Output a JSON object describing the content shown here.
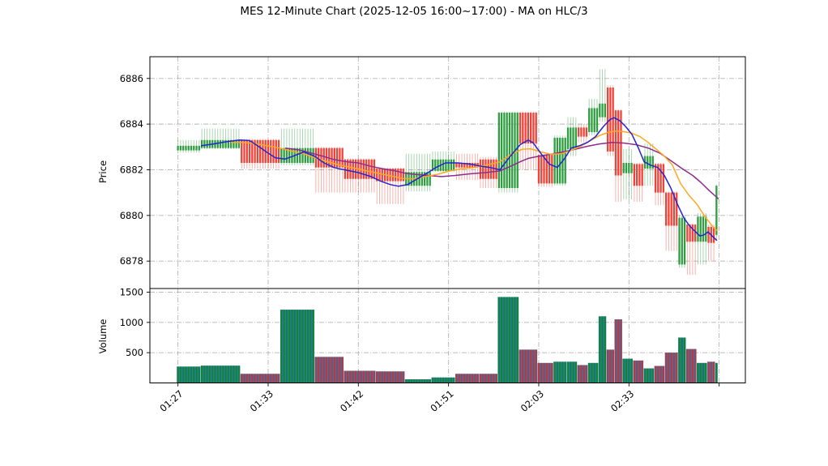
{
  "title": "MES 12-Minute Chart (2025-12-05 16:00~17:00) - MA on HLC/3",
  "price_axis": {
    "label": "Price",
    "ticks": [
      6878,
      6880,
      6882,
      6884,
      6886
    ],
    "range": [
      6876.8,
      6886.95
    ]
  },
  "volume_axis": {
    "label": "Volume",
    "ticks": [
      500,
      1000,
      1500
    ],
    "range": [
      0,
      1560
    ]
  },
  "x_axis": {
    "ticks": [
      {
        "index": 0,
        "label": "01:27"
      },
      {
        "index": 34,
        "label": "01:33"
      },
      {
        "index": 68,
        "label": "01:42"
      },
      {
        "index": 102,
        "label": "01:51"
      },
      {
        "index": 136,
        "label": "02:03"
      },
      {
        "index": 170,
        "label": "02:33"
      },
      {
        "index": 204,
        "label": ""
      }
    ]
  },
  "chart_data": {
    "type": "candlestick+volume",
    "description": "Dense intraday candles grouped into blocks of equal OHLC; volume bars colored by candle direction over blue base bars; three moving averages on HLC/3.",
    "groups": [
      {
        "count": 9,
        "open": 6882.85,
        "high": 6883.3,
        "low": 6882.75,
        "close": 6883.05,
        "volume": 270
      },
      {
        "count": 15,
        "open": 6882.95,
        "high": 6883.8,
        "low": 6882.9,
        "close": 6883.3,
        "volume": 285
      },
      {
        "count": 15,
        "open": 6883.3,
        "high": 6883.35,
        "low": 6882.05,
        "close": 6882.3,
        "volume": 150
      },
      {
        "count": 13,
        "open": 6882.3,
        "high": 6883.8,
        "low": 6882.2,
        "close": 6882.95,
        "volume": 1210
      },
      {
        "count": 11,
        "open": 6882.95,
        "high": 6883.0,
        "low": 6881.0,
        "close": 6882.1,
        "volume": 430
      },
      {
        "count": 12,
        "open": 6882.45,
        "high": 6882.5,
        "low": 6881.0,
        "close": 6881.6,
        "volume": 200
      },
      {
        "count": 11,
        "open": 6882.05,
        "high": 6882.1,
        "low": 6880.5,
        "close": 6881.5,
        "volume": 190
      },
      {
        "count": 10,
        "open": 6881.3,
        "high": 6882.7,
        "low": 6881.05,
        "close": 6881.9,
        "volume": 60
      },
      {
        "count": 9,
        "open": 6881.95,
        "high": 6882.8,
        "low": 6881.9,
        "close": 6882.45,
        "volume": 90
      },
      {
        "count": 9,
        "open": 6882.3,
        "high": 6882.7,
        "low": 6881.55,
        "close": 6882.1,
        "volume": 150
      },
      {
        "count": 7,
        "open": 6882.45,
        "high": 6882.55,
        "low": 6881.2,
        "close": 6881.6,
        "volume": 150
      },
      {
        "count": 8,
        "open": 6881.2,
        "high": 6884.55,
        "low": 6881.0,
        "close": 6884.5,
        "volume": 1420
      },
      {
        "count": 7,
        "open": 6884.5,
        "high": 6884.55,
        "low": 6882.0,
        "close": 6883.15,
        "volume": 550
      },
      {
        "count": 6,
        "open": 6882.65,
        "high": 6882.7,
        "low": 6881.25,
        "close": 6881.4,
        "volume": 330
      },
      {
        "count": 5,
        "open": 6881.4,
        "high": 6883.5,
        "low": 6881.3,
        "close": 6883.4,
        "volume": 350
      },
      {
        "count": 4,
        "open": 6882.9,
        "high": 6884.3,
        "low": 6882.6,
        "close": 6883.85,
        "volume": 350
      },
      {
        "count": 4,
        "open": 6883.85,
        "high": 6884.0,
        "low": 6883.2,
        "close": 6883.45,
        "volume": 295
      },
      {
        "count": 4,
        "open": 6883.65,
        "high": 6885.1,
        "low": 6883.5,
        "close": 6884.7,
        "volume": 330
      },
      {
        "count": 3,
        "open": 6884.3,
        "high": 6886.4,
        "low": 6884.1,
        "close": 6884.9,
        "volume": 1100
      },
      {
        "count": 3,
        "open": 6885.6,
        "high": 6885.7,
        "low": 6882.6,
        "close": 6882.8,
        "volume": 550
      },
      {
        "count": 3,
        "open": 6884.6,
        "high": 6884.65,
        "low": 6880.6,
        "close": 6881.75,
        "volume": 1050
      },
      {
        "count": 4,
        "open": 6881.85,
        "high": 6882.9,
        "low": 6880.7,
        "close": 6882.3,
        "volume": 400
      },
      {
        "count": 4,
        "open": 6882.25,
        "high": 6882.3,
        "low": 6880.6,
        "close": 6881.3,
        "volume": 370
      },
      {
        "count": 4,
        "open": 6882.05,
        "high": 6883.15,
        "low": 6881.3,
        "close": 6882.6,
        "volume": 240
      },
      {
        "count": 4,
        "open": 6882.25,
        "high": 6882.3,
        "low": 6880.45,
        "close": 6881.0,
        "volume": 280
      },
      {
        "count": 5,
        "open": 6881.0,
        "high": 6881.05,
        "low": 6878.45,
        "close": 6879.55,
        "volume": 500
      },
      {
        "count": 3,
        "open": 6877.85,
        "high": 6880.0,
        "low": 6877.7,
        "close": 6879.9,
        "volume": 750
      },
      {
        "count": 4,
        "open": 6879.6,
        "high": 6879.65,
        "low": 6877.4,
        "close": 6878.85,
        "volume": 560
      },
      {
        "count": 4,
        "open": 6878.85,
        "high": 6880.1,
        "low": 6877.85,
        "close": 6879.95,
        "volume": 330
      },
      {
        "count": 3,
        "open": 6879.5,
        "high": 6879.6,
        "low": 6878.0,
        "close": 6878.8,
        "volume": 350
      },
      {
        "count": 1,
        "open": 6879.15,
        "high": 6881.35,
        "low": 6878.9,
        "close": 6881.3,
        "volume": 330
      }
    ],
    "ma_lines": [
      {
        "name": "ma-fast-blue",
        "color": "#2424cd",
        "points": [
          [
            248,
            6883.05
          ],
          [
            262,
            6883.12
          ],
          [
            278,
            6883.22
          ],
          [
            295,
            6883.3
          ],
          [
            308,
            6883.28
          ],
          [
            318,
            6883.05
          ],
          [
            330,
            6882.75
          ],
          [
            340,
            6882.52
          ],
          [
            352,
            6882.47
          ],
          [
            362,
            6882.6
          ],
          [
            375,
            6882.78
          ],
          [
            388,
            6882.6
          ],
          [
            400,
            6882.3
          ],
          [
            412,
            6882.1
          ],
          [
            425,
            6882.0
          ],
          [
            442,
            6881.88
          ],
          [
            458,
            6881.7
          ],
          [
            470,
            6881.5
          ],
          [
            482,
            6881.35
          ],
          [
            492,
            6881.28
          ],
          [
            503,
            6881.35
          ],
          [
            515,
            6881.6
          ],
          [
            527,
            6881.85
          ],
          [
            538,
            6882.1
          ],
          [
            550,
            6882.3
          ],
          [
            565,
            6882.3
          ],
          [
            580,
            6882.25
          ],
          [
            595,
            6882.15
          ],
          [
            605,
            6882.1
          ],
          [
            617,
            6882.0
          ],
          [
            630,
            6882.6
          ],
          [
            642,
            6883.1
          ],
          [
            652,
            6883.3
          ],
          [
            658,
            6883.18
          ],
          [
            668,
            6882.7
          ],
          [
            678,
            6882.25
          ],
          [
            688,
            6882.1
          ],
          [
            697,
            6882.5
          ],
          [
            705,
            6882.95
          ],
          [
            715,
            6883.05
          ],
          [
            725,
            6883.2
          ],
          [
            735,
            6883.45
          ],
          [
            745,
            6883.9
          ],
          [
            753,
            6884.2
          ],
          [
            758,
            6884.28
          ],
          [
            765,
            6884.15
          ],
          [
            772,
            6883.9
          ],
          [
            780,
            6883.55
          ],
          [
            788,
            6882.95
          ],
          [
            795,
            6882.35
          ],
          [
            803,
            6882.2
          ],
          [
            812,
            6882.1
          ],
          [
            820,
            6881.75
          ],
          [
            828,
            6881.2
          ],
          [
            836,
            6880.5
          ],
          [
            844,
            6879.9
          ],
          [
            851,
            6879.55
          ],
          [
            858,
            6879.3
          ],
          [
            864,
            6879.1
          ],
          [
            869,
            6879.15
          ],
          [
            874,
            6879.28
          ],
          [
            879,
            6879.1
          ],
          [
            885,
            6878.9
          ]
        ]
      },
      {
        "name": "ma-mid-orange",
        "color": "#ffa721",
        "points": [
          [
            285,
            6883.2
          ],
          [
            300,
            6883.2
          ],
          [
            315,
            6883.15
          ],
          [
            330,
            6883.05
          ],
          [
            345,
            6882.95
          ],
          [
            360,
            6882.82
          ],
          [
            375,
            6882.7
          ],
          [
            390,
            6882.5
          ],
          [
            405,
            6882.35
          ],
          [
            420,
            6882.2
          ],
          [
            440,
            6882.05
          ],
          [
            460,
            6881.9
          ],
          [
            480,
            6881.75
          ],
          [
            497,
            6881.62
          ],
          [
            510,
            6881.6
          ],
          [
            525,
            6881.7
          ],
          [
            540,
            6881.8
          ],
          [
            555,
            6881.95
          ],
          [
            570,
            6882.05
          ],
          [
            585,
            6882.1
          ],
          [
            600,
            6882.2
          ],
          [
            617,
            6882.35
          ],
          [
            632,
            6882.7
          ],
          [
            645,
            6882.9
          ],
          [
            655,
            6882.92
          ],
          [
            668,
            6882.78
          ],
          [
            680,
            6882.68
          ],
          [
            693,
            6882.7
          ],
          [
            705,
            6882.85
          ],
          [
            718,
            6883.05
          ],
          [
            730,
            6883.3
          ],
          [
            740,
            6883.5
          ],
          [
            750,
            6883.63
          ],
          [
            760,
            6883.7
          ],
          [
            770,
            6883.67
          ],
          [
            780,
            6883.6
          ],
          [
            790,
            6883.45
          ],
          [
            800,
            6883.2
          ],
          [
            810,
            6882.9
          ],
          [
            820,
            6882.6
          ],
          [
            830,
            6882.2
          ],
          [
            840,
            6881.4
          ],
          [
            850,
            6880.9
          ],
          [
            860,
            6880.5
          ],
          [
            870,
            6879.95
          ],
          [
            880,
            6879.5
          ],
          [
            886,
            6879.3
          ]
        ]
      },
      {
        "name": "ma-slow-purple",
        "color": "#8c2d8c",
        "points": [
          [
            352,
            6882.95
          ],
          [
            368,
            6882.88
          ],
          [
            382,
            6882.75
          ],
          [
            398,
            6882.6
          ],
          [
            412,
            6882.45
          ],
          [
            428,
            6882.35
          ],
          [
            442,
            6882.3
          ],
          [
            458,
            6882.15
          ],
          [
            472,
            6882.05
          ],
          [
            488,
            6881.95
          ],
          [
            500,
            6881.85
          ],
          [
            512,
            6881.8
          ],
          [
            528,
            6881.75
          ],
          [
            545,
            6881.7
          ],
          [
            562,
            6881.75
          ],
          [
            580,
            6881.82
          ],
          [
            600,
            6881.88
          ],
          [
            617,
            6881.95
          ],
          [
            630,
            6882.15
          ],
          [
            642,
            6882.35
          ],
          [
            652,
            6882.5
          ],
          [
            666,
            6882.6
          ],
          [
            680,
            6882.68
          ],
          [
            695,
            6882.78
          ],
          [
            710,
            6882.9
          ],
          [
            725,
            6883.03
          ],
          [
            740,
            6883.13
          ],
          [
            755,
            6883.2
          ],
          [
            770,
            6883.17
          ],
          [
            785,
            6883.1
          ],
          [
            800,
            6882.95
          ],
          [
            815,
            6882.72
          ],
          [
            828,
            6882.4
          ],
          [
            842,
            6882.05
          ],
          [
            855,
            6881.75
          ],
          [
            865,
            6881.45
          ],
          [
            875,
            6881.1
          ],
          [
            887,
            6880.72
          ]
        ]
      }
    ],
    "colors": {
      "up": "#2f9e41",
      "down": "#ef4238",
      "volume_base": "#2e7cb8",
      "volume_up": "#128336",
      "volume_down": "#b13a44",
      "grid": "#b3b3b3",
      "spine": "#000000",
      "text": "#000000",
      "background": "#ffffff"
    },
    "legend": "none",
    "grid_style": "dash-dot"
  }
}
